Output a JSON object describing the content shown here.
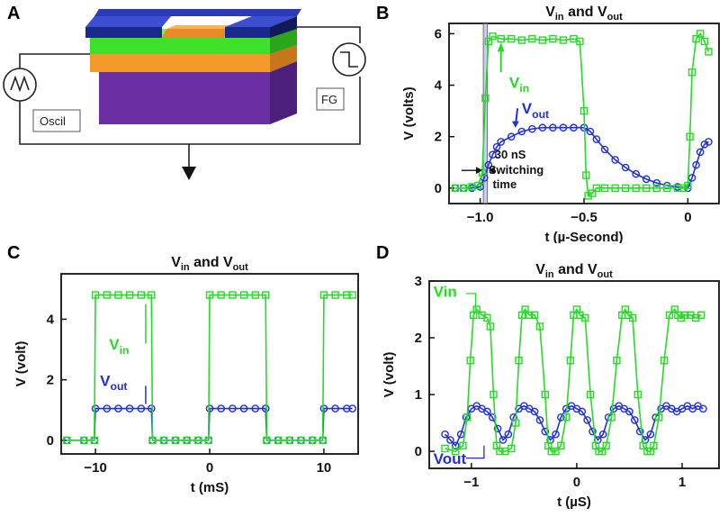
{
  "panels": {
    "a": {
      "letter": "A",
      "oscil_label": "Oscil",
      "fg_label": "FG"
    },
    "b": {
      "letter": "B",
      "switch_annotation_1": "30 nS",
      "switch_annotation_2": "Switching",
      "switch_annotation_3": "time"
    },
    "c": {
      "letter": "C"
    },
    "d": {
      "letter": "D"
    }
  },
  "colors": {
    "vin": "#22dd22",
    "vout": "#1f2fe0",
    "device_top": "#1a2a8c",
    "device_green": "#3fe02a",
    "device_orange": "#f39a2a",
    "device_purple": "#6b2ea3"
  },
  "chart_data": [
    {
      "id": "B",
      "type": "line",
      "title_main": "V",
      "title_sub1": "in",
      "title_join": " and V",
      "title_sub2": "out",
      "xlabel": "t (µ-Second)",
      "ylabel": "V (volts)",
      "xlim": [
        -1.15,
        0.15
      ],
      "ylim": [
        -0.6,
        6.4
      ],
      "xticks": [
        -1.0,
        -0.5,
        0
      ],
      "xtick_labels": [
        "−1.0",
        "−0.5",
        "0"
      ],
      "yticks": [
        0,
        2,
        4,
        6
      ],
      "ytick_labels": [
        "0",
        "2",
        "4",
        "6"
      ],
      "series": [
        {
          "name": "Vin",
          "label_main": "V",
          "label_sub": "in",
          "x": [
            -1.12,
            -1.08,
            -1.04,
            -1.01,
            -0.99,
            -0.975,
            -0.96,
            -0.94,
            -0.9,
            -0.85,
            -0.8,
            -0.75,
            -0.7,
            -0.65,
            -0.6,
            -0.55,
            -0.52,
            -0.5,
            -0.49,
            -0.48,
            -0.46,
            -0.44,
            -0.4,
            -0.35,
            -0.3,
            -0.25,
            -0.2,
            -0.15,
            -0.1,
            -0.05,
            -0.02,
            0.0,
            0.01,
            0.02,
            0.04,
            0.06,
            0.08,
            0.1
          ],
          "y": [
            0.0,
            0.0,
            0.05,
            0.1,
            0.6,
            3.5,
            5.7,
            5.9,
            5.8,
            5.8,
            5.75,
            5.8,
            5.75,
            5.8,
            5.75,
            5.8,
            5.7,
            3.0,
            0.5,
            -0.3,
            -0.2,
            0.0,
            0.0,
            0.0,
            0.0,
            0.0,
            0.0,
            0.0,
            0.0,
            0.0,
            0.0,
            0.1,
            2.0,
            4.5,
            5.8,
            6.0,
            5.7,
            5.3
          ]
        },
        {
          "name": "Vout",
          "label_main": "V",
          "label_sub": "out",
          "x": [
            -1.12,
            -1.08,
            -1.04,
            -1.0,
            -0.98,
            -0.96,
            -0.94,
            -0.92,
            -0.9,
            -0.85,
            -0.8,
            -0.75,
            -0.7,
            -0.65,
            -0.6,
            -0.55,
            -0.5,
            -0.47,
            -0.44,
            -0.4,
            -0.35,
            -0.3,
            -0.25,
            -0.2,
            -0.15,
            -0.1,
            -0.05,
            0.0,
            0.02,
            0.04,
            0.06,
            0.08,
            0.1
          ],
          "y": [
            0.0,
            0.0,
            0.0,
            0.05,
            0.4,
            0.9,
            1.3,
            1.6,
            1.8,
            2.0,
            2.2,
            2.3,
            2.35,
            2.35,
            2.35,
            2.35,
            2.35,
            2.2,
            1.9,
            1.5,
            1.1,
            0.8,
            0.55,
            0.35,
            0.2,
            0.1,
            0.05,
            0.0,
            0.4,
            0.9,
            1.4,
            1.7,
            1.8
          ]
        }
      ]
    },
    {
      "id": "C",
      "type": "line",
      "title_main": "V",
      "title_sub1": "in",
      "title_join": " and V",
      "title_sub2": "out",
      "xlabel": "t (mS)",
      "ylabel": "V (volt)",
      "xlim": [
        -13,
        13
      ],
      "ylim": [
        -0.45,
        5.5
      ],
      "xticks": [
        -10,
        0,
        10
      ],
      "xtick_labels": [
        "−10",
        "0",
        "10"
      ],
      "yticks": [
        0,
        2,
        4
      ],
      "ytick_labels": [
        "0",
        "2",
        "4"
      ],
      "series": [
        {
          "name": "Vin",
          "label_main": "V",
          "label_sub": "in",
          "x": [
            -12.5,
            -11,
            -10.1,
            -10.0,
            -9,
            -8,
            -7,
            -6,
            -5.1,
            -5.0,
            -4,
            -3,
            -2,
            -1,
            -0.1,
            0.0,
            1,
            2,
            3,
            4,
            4.9,
            5.0,
            6,
            7,
            8,
            9,
            9.9,
            10.0,
            11,
            12,
            12.5
          ],
          "y": [
            0.0,
            0.0,
            0.0,
            4.8,
            4.8,
            4.8,
            4.8,
            4.8,
            4.8,
            0.0,
            0.0,
            0.0,
            0.0,
            0.0,
            0.0,
            4.8,
            4.8,
            4.8,
            4.8,
            4.8,
            4.8,
            0.0,
            0.0,
            0.0,
            0.0,
            0.0,
            0.0,
            4.8,
            4.8,
            4.8,
            4.8
          ]
        },
        {
          "name": "Vout",
          "label_main": "V",
          "label_sub": "out",
          "x": [
            -12.5,
            -11,
            -10.1,
            -10.0,
            -9,
            -8,
            -7,
            -6,
            -5.1,
            -5.0,
            -4,
            -3,
            -2,
            -1,
            -0.1,
            0.0,
            1,
            2,
            3,
            4,
            4.9,
            5.0,
            6,
            7,
            8,
            9,
            9.9,
            10.0,
            11,
            12,
            12.5
          ],
          "y": [
            0.0,
            0.0,
            0.0,
            1.05,
            1.05,
            1.05,
            1.05,
            1.05,
            1.05,
            0.0,
            0.0,
            0.0,
            0.0,
            0.0,
            0.0,
            1.05,
            1.05,
            1.05,
            1.05,
            1.05,
            1.05,
            0.0,
            0.0,
            0.0,
            0.0,
            0.0,
            0.0,
            1.05,
            1.05,
            1.05,
            1.05
          ]
        }
      ]
    },
    {
      "id": "D",
      "type": "line",
      "title_main": "V",
      "title_sub1": "in",
      "title_join": " and V",
      "title_sub2": "out",
      "xlabel": "t (µS)",
      "ylabel": "V (volt)",
      "xlim": [
        -1.4,
        1.35
      ],
      "ylim": [
        -0.3,
        3.0
      ],
      "xticks": [
        -1,
        0,
        1
      ],
      "xtick_labels": [
        "−1",
        "0",
        "1"
      ],
      "yticks": [
        0,
        1,
        2,
        3
      ],
      "ytick_labels": [
        "0",
        "1",
        "2",
        "3"
      ],
      "series": [
        {
          "name": "Vin",
          "label": "Vin",
          "x": [
            -1.25,
            -1.15,
            -1.08,
            -1.04,
            -1.01,
            -0.98,
            -0.95,
            -0.9,
            -0.85,
            -0.82,
            -0.79,
            -0.76,
            -0.73,
            -0.68,
            -0.62,
            -0.58,
            -0.55,
            -0.52,
            -0.49,
            -0.45,
            -0.4,
            -0.35,
            -0.3,
            -0.27,
            -0.24,
            -0.2,
            -0.15,
            -0.1,
            -0.06,
            -0.03,
            0.0,
            0.03,
            0.08,
            0.13,
            0.18,
            0.21,
            0.24,
            0.28,
            0.33,
            0.38,
            0.43,
            0.46,
            0.49,
            0.53,
            0.58,
            0.63,
            0.67,
            0.7,
            0.73,
            0.78,
            0.83,
            0.88,
            0.93,
            0.96,
            0.99,
            1.03,
            1.08,
            1.13,
            1.18
          ],
          "y": [
            0.05,
            0.0,
            0.1,
            0.6,
            1.6,
            2.4,
            2.5,
            2.4,
            2.35,
            2.2,
            1.0,
            0.1,
            0.0,
            0.0,
            0.05,
            0.5,
            1.6,
            2.4,
            2.5,
            2.4,
            2.4,
            2.2,
            1.0,
            0.1,
            0.0,
            0.0,
            0.1,
            0.6,
            1.6,
            2.4,
            2.5,
            2.4,
            2.35,
            1.0,
            0.1,
            0.0,
            0.0,
            0.1,
            0.6,
            1.6,
            2.4,
            2.5,
            2.4,
            2.35,
            1.0,
            0.1,
            0.0,
            0.0,
            0.1,
            0.6,
            1.6,
            2.4,
            2.5,
            2.4,
            2.35,
            2.4,
            2.4,
            2.35,
            2.4
          ]
        },
        {
          "name": "Vout",
          "label": "Vout",
          "x": [
            -1.25,
            -1.2,
            -1.15,
            -1.1,
            -1.05,
            -1.0,
            -0.95,
            -0.9,
            -0.85,
            -0.8,
            -0.75,
            -0.7,
            -0.65,
            -0.6,
            -0.55,
            -0.5,
            -0.45,
            -0.4,
            -0.35,
            -0.3,
            -0.25,
            -0.2,
            -0.15,
            -0.1,
            -0.05,
            0.0,
            0.05,
            0.1,
            0.15,
            0.2,
            0.25,
            0.3,
            0.35,
            0.4,
            0.45,
            0.5,
            0.55,
            0.6,
            0.65,
            0.7,
            0.75,
            0.8,
            0.85,
            0.9,
            0.95,
            1.0,
            1.05,
            1.1,
            1.15,
            1.2
          ],
          "y": [
            0.3,
            0.2,
            0.1,
            0.3,
            0.6,
            0.75,
            0.8,
            0.75,
            0.7,
            0.6,
            0.4,
            0.2,
            0.3,
            0.6,
            0.75,
            0.8,
            0.75,
            0.7,
            0.55,
            0.35,
            0.2,
            0.3,
            0.6,
            0.75,
            0.8,
            0.75,
            0.7,
            0.55,
            0.35,
            0.2,
            0.3,
            0.6,
            0.75,
            0.8,
            0.75,
            0.7,
            0.55,
            0.35,
            0.2,
            0.3,
            0.6,
            0.75,
            0.8,
            0.75,
            0.7,
            0.75,
            0.8,
            0.75,
            0.8,
            0.75
          ]
        }
      ]
    }
  ]
}
